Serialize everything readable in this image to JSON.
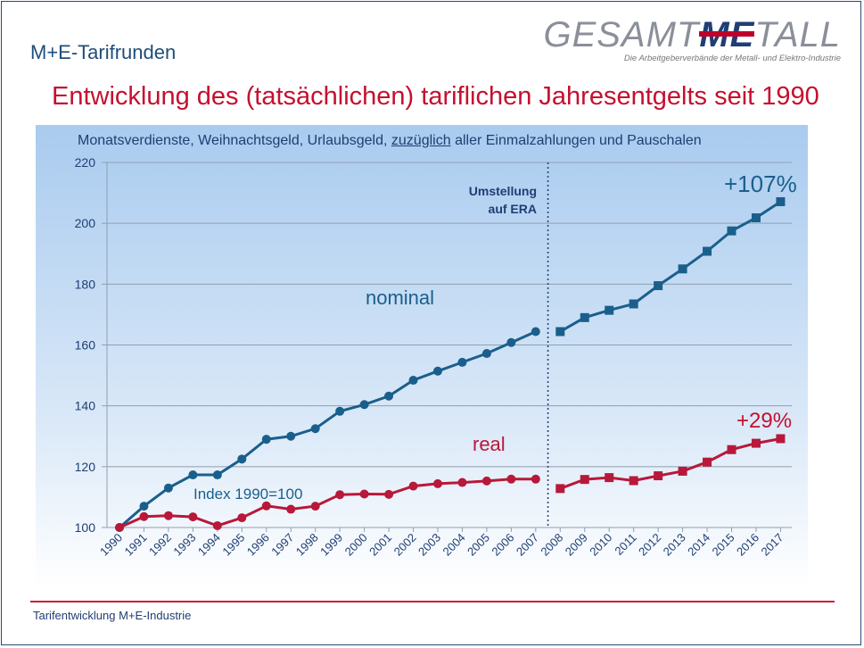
{
  "header": {
    "title": "M+E-Tarifrunden",
    "logo_text_a": "GESAMT",
    "logo_text_b": "ME",
    "logo_text_c": "TALL",
    "logo_subtitle": "Die Arbeitgeberverbände der Metall- und Elektro-Industrie"
  },
  "headline": "Entwicklung des (tatsächlichen) tariflichen Jahresentgelts seit 1990",
  "subtitle": {
    "before": "Monatsverdienste, Weihnachtsgeld, Urlaubsgeld,",
    "underlined": "zuzüglich",
    "after": "aller Einmalzahlungen und Pauschalen"
  },
  "footer": "Tarifentwicklung  M+E-Industrie",
  "colors": {
    "nominal": "#1a5f8c",
    "real": "#b8183a",
    "text_blue": "#1f3e73",
    "headline": "#c4102f"
  },
  "chart_data": {
    "type": "line",
    "x": [
      "1990",
      "1991",
      "1992",
      "1993",
      "1994",
      "1995",
      "1996",
      "1997",
      "1998",
      "1999",
      "2000",
      "2001",
      "2002",
      "2003",
      "2004",
      "2005",
      "2006",
      "2007",
      "2008",
      "2009",
      "2010",
      "2011",
      "2012",
      "2013",
      "2014",
      "2015",
      "2016",
      "2017"
    ],
    "ylim": [
      100,
      220
    ],
    "yticks": [
      100,
      120,
      140,
      160,
      180,
      200,
      220
    ],
    "grid": true,
    "series": [
      {
        "name": "nominal",
        "segment1_marker": "circle",
        "segment2_marker": "square",
        "values": [
          100,
          107,
          113,
          117.3,
          117.3,
          122.5,
          129,
          130,
          132.5,
          138.2,
          140.4,
          143.2,
          148.4,
          151.4,
          154.3,
          157.2,
          160.8,
          164.4,
          164.4,
          169,
          171.4,
          173.5,
          179.5,
          185,
          190.8,
          197.5,
          201.8,
          207.1
        ]
      },
      {
        "name": "real",
        "segment1_marker": "circle",
        "segment2_marker": "square",
        "values": [
          100,
          103.6,
          103.9,
          103.5,
          100.6,
          103.2,
          107.1,
          106,
          107,
          110.8,
          111,
          110.9,
          113.6,
          114.4,
          114.8,
          115.3,
          115.9,
          115.9,
          112.8,
          115.8,
          116.4,
          115.4,
          117,
          118.5,
          121.5,
          125.6,
          127.7,
          129.2
        ]
      }
    ],
    "break_after": "2007",
    "annotations": {
      "era_line1": "Umstellung",
      "era_line2": "auf ERA",
      "nominal_label": "nominal",
      "real_label": "real",
      "index_label": "Index 1990=100",
      "nominal_change": "+107%",
      "real_change": "+29%"
    }
  }
}
